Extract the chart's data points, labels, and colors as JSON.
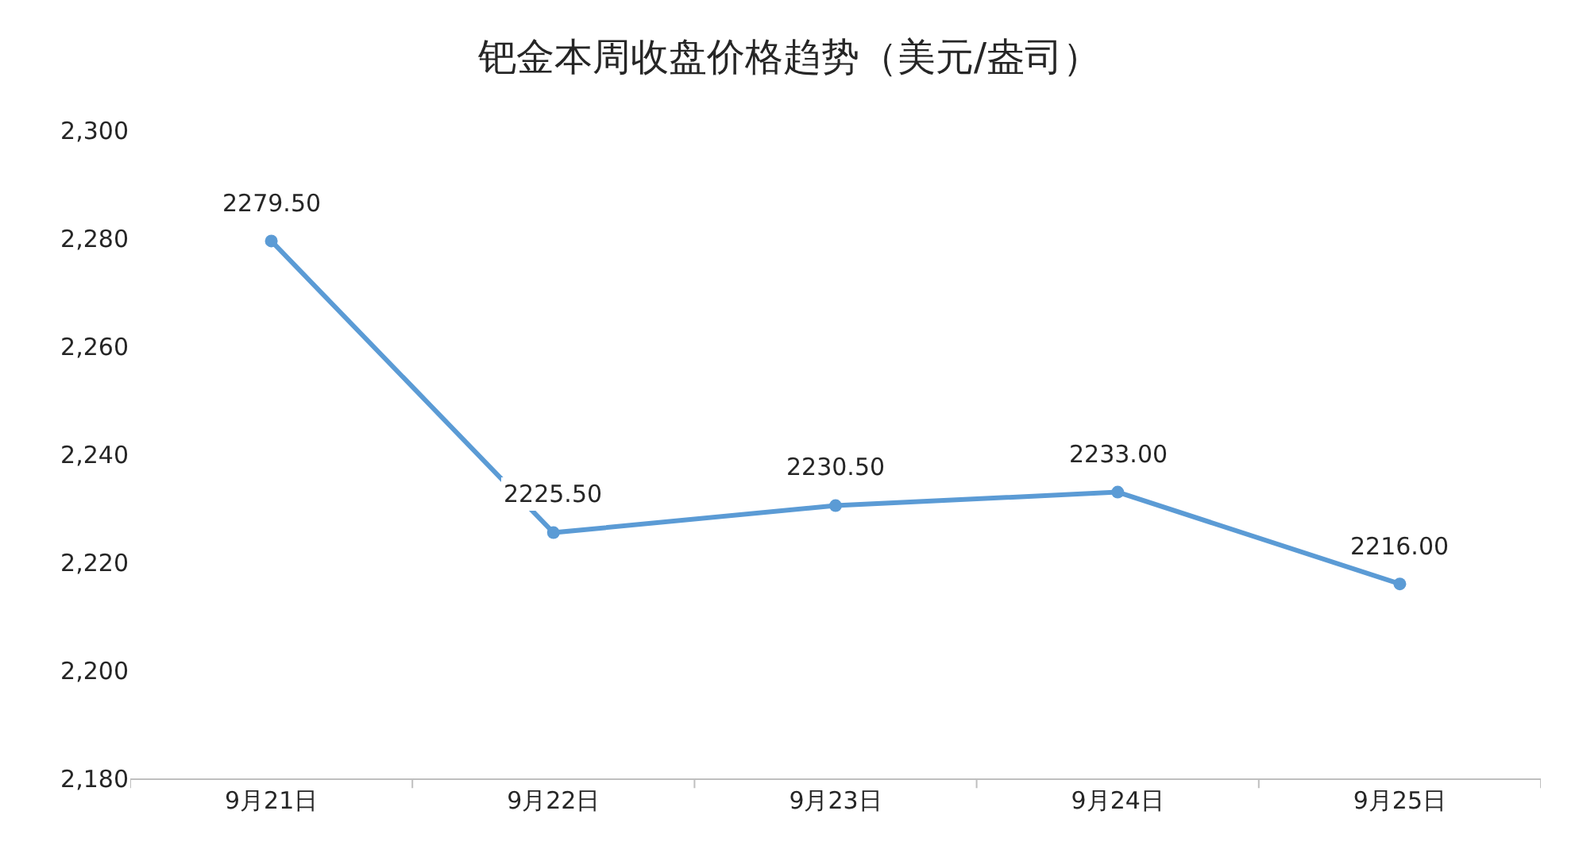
{
  "chart_data": {
    "type": "line",
    "title": "钯金本周收盘价格趋势（美元/盎司）",
    "categories": [
      "9月21日",
      "9月22日",
      "9月23日",
      "9月24日",
      "9月25日"
    ],
    "series": [
      {
        "color": "#5b9bd5",
        "values": [
          2279.5,
          2225.5,
          2230.5,
          2233.0,
          2216.0
        ]
      }
    ],
    "value_labels": [
      "2279.50",
      "2225.50",
      "2230.50",
      "2233.00",
      "2216.00"
    ],
    "ylim": [
      2180,
      2300
    ],
    "yticks": [
      {
        "value": 2180,
        "label": "2,180"
      },
      {
        "value": 2200,
        "label": "2,200"
      },
      {
        "value": 2220,
        "label": "2,220"
      },
      {
        "value": 2240,
        "label": "2,240"
      },
      {
        "value": 2260,
        "label": "2,260"
      },
      {
        "value": 2280,
        "label": "2,280"
      },
      {
        "value": 2300,
        "label": "2,300"
      }
    ],
    "legend": false,
    "marker": "circle",
    "line_style": "solid"
  }
}
